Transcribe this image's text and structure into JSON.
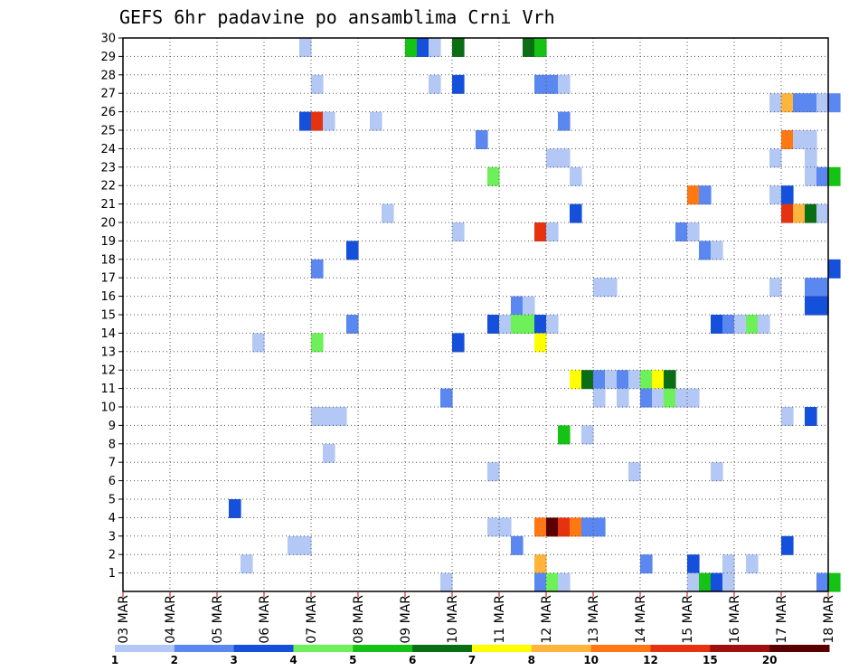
{
  "chart_data": {
    "type": "heatmap",
    "title": "GEFS 6hr padavine po ansamblima Crni Vrh",
    "xlabel": "",
    "ylabel": "",
    "x_tick_labels": [
      "03 MAR",
      "04 MAR",
      "05 MAR",
      "06 MAR",
      "07 MAR",
      "08 MAR",
      "09 MAR",
      "10 MAR",
      "11 MAR",
      "12 MAR",
      "13 MAR",
      "14 MAR",
      "15 MAR",
      "16 MAR",
      "17 MAR",
      "18 MAR"
    ],
    "y_tick_labels": [
      "1",
      "2",
      "3",
      "4",
      "5",
      "6",
      "7",
      "8",
      "9",
      "10",
      "11",
      "12",
      "13",
      "14",
      "15",
      "16",
      "17",
      "18",
      "19",
      "20",
      "21",
      "22",
      "23",
      "24",
      "25",
      "26",
      "27",
      "28",
      "29",
      "30"
    ],
    "xlim": [
      0,
      15
    ],
    "ylim": [
      0,
      30
    ],
    "grid": true,
    "colorbar": {
      "levels": [
        "1",
        "2",
        "3",
        "4",
        "5",
        "6",
        "7",
        "8",
        "10",
        "12",
        "15",
        "20"
      ],
      "colors": [
        "#b4c8f5",
        "#5a87f0",
        "#1450dc",
        "#6ef05a",
        "#14c314",
        "#0a6e14",
        "#ffff00",
        "#ffb43c",
        "#ff7814",
        "#e6320f",
        "#a00f0f",
        "#5a0000"
      ]
    },
    "cells": [
      {
        "t": 3.75,
        "m": 30,
        "c": 0
      },
      {
        "t": 6.0,
        "m": 30,
        "c": 4
      },
      {
        "t": 6.25,
        "m": 30,
        "c": 2
      },
      {
        "t": 6.5,
        "m": 30,
        "c": 0
      },
      {
        "t": 7.0,
        "m": 30,
        "c": 5
      },
      {
        "t": 8.5,
        "m": 30,
        "c": 5
      },
      {
        "t": 8.75,
        "m": 30,
        "c": 4
      },
      {
        "t": 4.0,
        "m": 28,
        "c": 0
      },
      {
        "t": 6.5,
        "m": 28,
        "c": 0
      },
      {
        "t": 7.0,
        "m": 28,
        "c": 2
      },
      {
        "t": 8.75,
        "m": 28,
        "c": 1
      },
      {
        "t": 9.0,
        "m": 28,
        "c": 1
      },
      {
        "t": 9.25,
        "m": 28,
        "c": 0
      },
      {
        "t": 13.75,
        "m": 27,
        "c": 0
      },
      {
        "t": 14.0,
        "m": 27,
        "c": 7
      },
      {
        "t": 14.25,
        "m": 27,
        "c": 1
      },
      {
        "t": 14.5,
        "m": 27,
        "c": 1
      },
      {
        "t": 14.75,
        "m": 27,
        "c": 0
      },
      {
        "t": 15.0,
        "m": 27,
        "c": 1
      },
      {
        "t": 3.75,
        "m": 26,
        "c": 2
      },
      {
        "t": 4.0,
        "m": 26,
        "c": 9
      },
      {
        "t": 4.25,
        "m": 26,
        "c": 0
      },
      {
        "t": 5.25,
        "m": 26,
        "c": 0
      },
      {
        "t": 9.25,
        "m": 26,
        "c": 1
      },
      {
        "t": 7.5,
        "m": 25,
        "c": 1
      },
      {
        "t": 14.0,
        "m": 25,
        "c": 8
      },
      {
        "t": 14.25,
        "m": 25,
        "c": 0
      },
      {
        "t": 14.5,
        "m": 25,
        "c": 0
      },
      {
        "t": 9.0,
        "m": 24,
        "c": 0
      },
      {
        "t": 9.25,
        "m": 24,
        "c": 0
      },
      {
        "t": 13.75,
        "m": 24,
        "c": 0
      },
      {
        "t": 14.5,
        "m": 24,
        "c": 0
      },
      {
        "t": 7.75,
        "m": 23,
        "c": 3
      },
      {
        "t": 9.5,
        "m": 23,
        "c": 0
      },
      {
        "t": 14.5,
        "m": 23,
        "c": 0
      },
      {
        "t": 14.75,
        "m": 23,
        "c": 1
      },
      {
        "t": 15.0,
        "m": 23,
        "c": 4
      },
      {
        "t": 12.0,
        "m": 22,
        "c": 8
      },
      {
        "t": 12.25,
        "m": 22,
        "c": 1
      },
      {
        "t": 13.75,
        "m": 22,
        "c": 0
      },
      {
        "t": 14.0,
        "m": 22,
        "c": 2
      },
      {
        "t": 5.5,
        "m": 21,
        "c": 0
      },
      {
        "t": 9.5,
        "m": 21,
        "c": 2
      },
      {
        "t": 14.0,
        "m": 21,
        "c": 9
      },
      {
        "t": 14.25,
        "m": 21,
        "c": 7
      },
      {
        "t": 14.5,
        "m": 21,
        "c": 5
      },
      {
        "t": 14.75,
        "m": 21,
        "c": 0
      },
      {
        "t": 7.0,
        "m": 20,
        "c": 0
      },
      {
        "t": 8.75,
        "m": 20,
        "c": 9
      },
      {
        "t": 9.0,
        "m": 20,
        "c": 0
      },
      {
        "t": 11.75,
        "m": 20,
        "c": 1
      },
      {
        "t": 12.0,
        "m": 20,
        "c": 0
      },
      {
        "t": 4.75,
        "m": 19,
        "c": 2
      },
      {
        "t": 12.25,
        "m": 19,
        "c": 1
      },
      {
        "t": 12.5,
        "m": 19,
        "c": 0
      },
      {
        "t": 4.0,
        "m": 18,
        "c": 1
      },
      {
        "t": 15.0,
        "m": 18,
        "c": 2
      },
      {
        "t": 10.0,
        "m": 17,
        "c": 0
      },
      {
        "t": 10.25,
        "m": 17,
        "c": 0
      },
      {
        "t": 13.75,
        "m": 17,
        "c": 0
      },
      {
        "t": 14.5,
        "m": 17,
        "c": 1
      },
      {
        "t": 14.75,
        "m": 17,
        "c": 1
      },
      {
        "t": 8.25,
        "m": 16,
        "c": 1
      },
      {
        "t": 8.5,
        "m": 16,
        "c": 0
      },
      {
        "t": 14.5,
        "m": 16,
        "c": 2
      },
      {
        "t": 14.75,
        "m": 16,
        "c": 2
      },
      {
        "t": 4.75,
        "m": 15,
        "c": 1
      },
      {
        "t": 7.75,
        "m": 15,
        "c": 2
      },
      {
        "t": 8.0,
        "m": 15,
        "c": 0
      },
      {
        "t": 8.25,
        "m": 15,
        "c": 3
      },
      {
        "t": 8.5,
        "m": 15,
        "c": 3
      },
      {
        "t": 8.75,
        "m": 15,
        "c": 2
      },
      {
        "t": 9.0,
        "m": 15,
        "c": 0
      },
      {
        "t": 12.5,
        "m": 15,
        "c": 2
      },
      {
        "t": 12.75,
        "m": 15,
        "c": 1
      },
      {
        "t": 13.0,
        "m": 15,
        "c": 0
      },
      {
        "t": 13.25,
        "m": 15,
        "c": 3
      },
      {
        "t": 13.5,
        "m": 15,
        "c": 0
      },
      {
        "t": 2.75,
        "m": 14,
        "c": 0
      },
      {
        "t": 4.0,
        "m": 14,
        "c": 3
      },
      {
        "t": 7.0,
        "m": 14,
        "c": 2
      },
      {
        "t": 8.75,
        "m": 14,
        "c": 6
      },
      {
        "t": 9.5,
        "m": 12,
        "c": 6
      },
      {
        "t": 9.75,
        "m": 12,
        "c": 5
      },
      {
        "t": 10.0,
        "m": 12,
        "c": 1
      },
      {
        "t": 10.25,
        "m": 12,
        "c": 0
      },
      {
        "t": 10.5,
        "m": 12,
        "c": 1
      },
      {
        "t": 10.75,
        "m": 12,
        "c": 0
      },
      {
        "t": 11.0,
        "m": 12,
        "c": 3
      },
      {
        "t": 11.25,
        "m": 12,
        "c": 6
      },
      {
        "t": 11.5,
        "m": 12,
        "c": 5
      },
      {
        "t": 6.75,
        "m": 11,
        "c": 1
      },
      {
        "t": 10.0,
        "m": 11,
        "c": 0
      },
      {
        "t": 10.5,
        "m": 11,
        "c": 0
      },
      {
        "t": 11.0,
        "m": 11,
        "c": 1
      },
      {
        "t": 11.25,
        "m": 11,
        "c": 0
      },
      {
        "t": 11.5,
        "m": 11,
        "c": 3
      },
      {
        "t": 11.75,
        "m": 11,
        "c": 0
      },
      {
        "t": 12.0,
        "m": 11,
        "c": 0
      },
      {
        "t": 4.0,
        "m": 10,
        "c": 0
      },
      {
        "t": 4.25,
        "m": 10,
        "c": 0
      },
      {
        "t": 4.5,
        "m": 10,
        "c": 0
      },
      {
        "t": 14.0,
        "m": 10,
        "c": 0
      },
      {
        "t": 14.5,
        "m": 10,
        "c": 2
      },
      {
        "t": 9.25,
        "m": 9,
        "c": 4
      },
      {
        "t": 9.75,
        "m": 9,
        "c": 0
      },
      {
        "t": 4.25,
        "m": 8,
        "c": 0
      },
      {
        "t": 7.75,
        "m": 7,
        "c": 0
      },
      {
        "t": 10.75,
        "m": 7,
        "c": 0
      },
      {
        "t": 12.5,
        "m": 7,
        "c": 0
      },
      {
        "t": 2.25,
        "m": 5,
        "c": 2
      },
      {
        "t": 7.75,
        "m": 4,
        "c": 0
      },
      {
        "t": 8.0,
        "m": 4,
        "c": 0
      },
      {
        "t": 8.75,
        "m": 4,
        "c": 8
      },
      {
        "t": 9.0,
        "m": 4,
        "c": 11
      },
      {
        "t": 9.25,
        "m": 4,
        "c": 9
      },
      {
        "t": 9.5,
        "m": 4,
        "c": 8
      },
      {
        "t": 9.75,
        "m": 4,
        "c": 1
      },
      {
        "t": 10.0,
        "m": 4,
        "c": 1
      },
      {
        "t": 3.5,
        "m": 3,
        "c": 0
      },
      {
        "t": 3.75,
        "m": 3,
        "c": 0
      },
      {
        "t": 8.25,
        "m": 3,
        "c": 1
      },
      {
        "t": 14.0,
        "m": 3,
        "c": 2
      },
      {
        "t": 2.5,
        "m": 2,
        "c": 0
      },
      {
        "t": 8.75,
        "m": 2,
        "c": 7
      },
      {
        "t": 11.0,
        "m": 2,
        "c": 1
      },
      {
        "t": 12.0,
        "m": 2,
        "c": 2
      },
      {
        "t": 12.75,
        "m": 2,
        "c": 0
      },
      {
        "t": 13.25,
        "m": 2,
        "c": 0
      },
      {
        "t": 6.75,
        "m": 1,
        "c": 0
      },
      {
        "t": 8.75,
        "m": 1,
        "c": 1
      },
      {
        "t": 9.0,
        "m": 1,
        "c": 3
      },
      {
        "t": 9.25,
        "m": 1,
        "c": 0
      },
      {
        "t": 12.0,
        "m": 1,
        "c": 0
      },
      {
        "t": 12.25,
        "m": 1,
        "c": 4
      },
      {
        "t": 12.5,
        "m": 1,
        "c": 2
      },
      {
        "t": 12.75,
        "m": 1,
        "c": 0
      },
      {
        "t": 14.75,
        "m": 1,
        "c": 1
      },
      {
        "t": 15.0,
        "m": 1,
        "c": 4
      }
    ]
  }
}
